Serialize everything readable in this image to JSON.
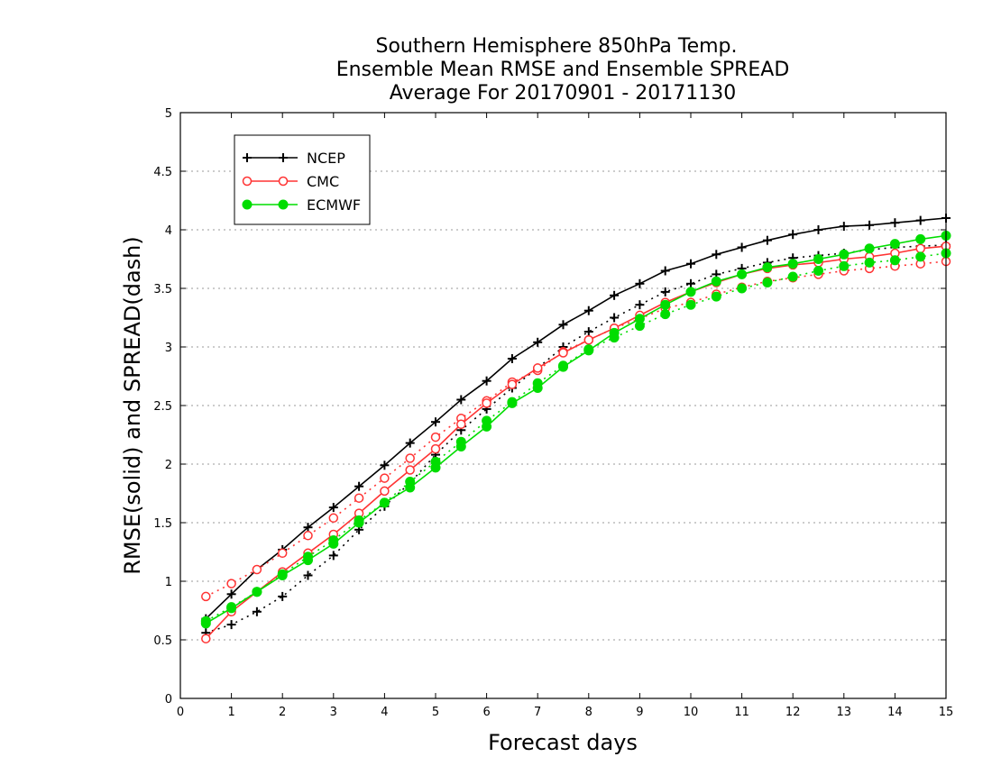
{
  "chart_data": {
    "type": "line",
    "title_lines": [
      "Southern Hemisphere 850hPa Temp.",
      "Ensemble Mean RMSE and Ensemble SPREAD",
      "Average For 20170901 - 20171130"
    ],
    "xlabel": "Forecast days",
    "ylabel": "RMSE(solid) and SPREAD(dash)",
    "xlim": [
      0,
      15
    ],
    "ylim": [
      0,
      5
    ],
    "xticks": [
      "0",
      "1",
      "2",
      "3",
      "4",
      "5",
      "6",
      "7",
      "8",
      "9",
      "10",
      "11",
      "12",
      "13",
      "14",
      "15"
    ],
    "yticks": [
      "0",
      "0.5",
      "1",
      "1.5",
      "2",
      "2.5",
      "3",
      "3.5",
      "4",
      "4.5",
      "5"
    ],
    "grid": "horizontal dotted",
    "legend_position": "top-left",
    "x": [
      0.5,
      1,
      1.5,
      2,
      2.5,
      3,
      3.5,
      4,
      4.5,
      5,
      5.5,
      6,
      6.5,
      7,
      7.5,
      8,
      8.5,
      9,
      9.5,
      10,
      10.5,
      11,
      11.5,
      12,
      12.5,
      13,
      13.5,
      14,
      14.5,
      15
    ],
    "series": [
      {
        "name": "NCEP",
        "color": "#000000",
        "marker": "plus",
        "rmse": [
          0.68,
          0.89,
          1.1,
          1.27,
          1.46,
          1.63,
          1.81,
          1.99,
          2.18,
          2.36,
          2.55,
          2.71,
          2.9,
          3.04,
          3.19,
          3.31,
          3.44,
          3.54,
          3.65,
          3.71,
          3.79,
          3.85,
          3.91,
          3.96,
          4.0,
          4.03,
          4.04,
          4.06,
          4.08,
          4.1
        ],
        "spread": [
          0.56,
          0.63,
          0.74,
          0.87,
          1.05,
          1.22,
          1.44,
          1.64,
          1.84,
          2.08,
          2.29,
          2.47,
          2.65,
          2.82,
          3.0,
          3.13,
          3.25,
          3.36,
          3.47,
          3.54,
          3.62,
          3.67,
          3.72,
          3.76,
          3.78,
          3.8,
          3.83,
          3.85,
          3.86,
          3.87
        ]
      },
      {
        "name": "CMC",
        "color": "#ff3333",
        "marker": "open-circle",
        "rmse": [
          0.51,
          0.74,
          0.91,
          1.08,
          1.24,
          1.4,
          1.58,
          1.77,
          1.95,
          2.13,
          2.34,
          2.52,
          2.68,
          2.82,
          2.95,
          3.06,
          3.16,
          3.27,
          3.38,
          3.47,
          3.55,
          3.62,
          3.67,
          3.7,
          3.72,
          3.75,
          3.77,
          3.8,
          3.84,
          3.86
        ],
        "spread": [
          0.87,
          0.98,
          1.1,
          1.24,
          1.39,
          1.54,
          1.71,
          1.88,
          2.05,
          2.23,
          2.39,
          2.54,
          2.7,
          2.8,
          2.96,
          3.06,
          3.16,
          3.24,
          3.33,
          3.38,
          3.45,
          3.51,
          3.56,
          3.59,
          3.62,
          3.65,
          3.67,
          3.69,
          3.71,
          3.73
        ]
      },
      {
        "name": "ECMWF",
        "color": "#00dd00",
        "marker": "filled-circle",
        "rmse": [
          0.64,
          0.77,
          0.91,
          1.05,
          1.18,
          1.32,
          1.5,
          1.67,
          1.8,
          1.97,
          2.15,
          2.32,
          2.52,
          2.65,
          2.83,
          2.97,
          3.12,
          3.24,
          3.36,
          3.47,
          3.56,
          3.62,
          3.68,
          3.71,
          3.75,
          3.79,
          3.84,
          3.88,
          3.92,
          3.95
        ],
        "spread": [
          0.66,
          0.78,
          0.91,
          1.06,
          1.21,
          1.35,
          1.52,
          1.67,
          1.85,
          2.02,
          2.19,
          2.37,
          2.53,
          2.69,
          2.84,
          2.98,
          3.08,
          3.18,
          3.28,
          3.36,
          3.43,
          3.5,
          3.55,
          3.6,
          3.65,
          3.69,
          3.72,
          3.74,
          3.77,
          3.8
        ]
      }
    ]
  }
}
